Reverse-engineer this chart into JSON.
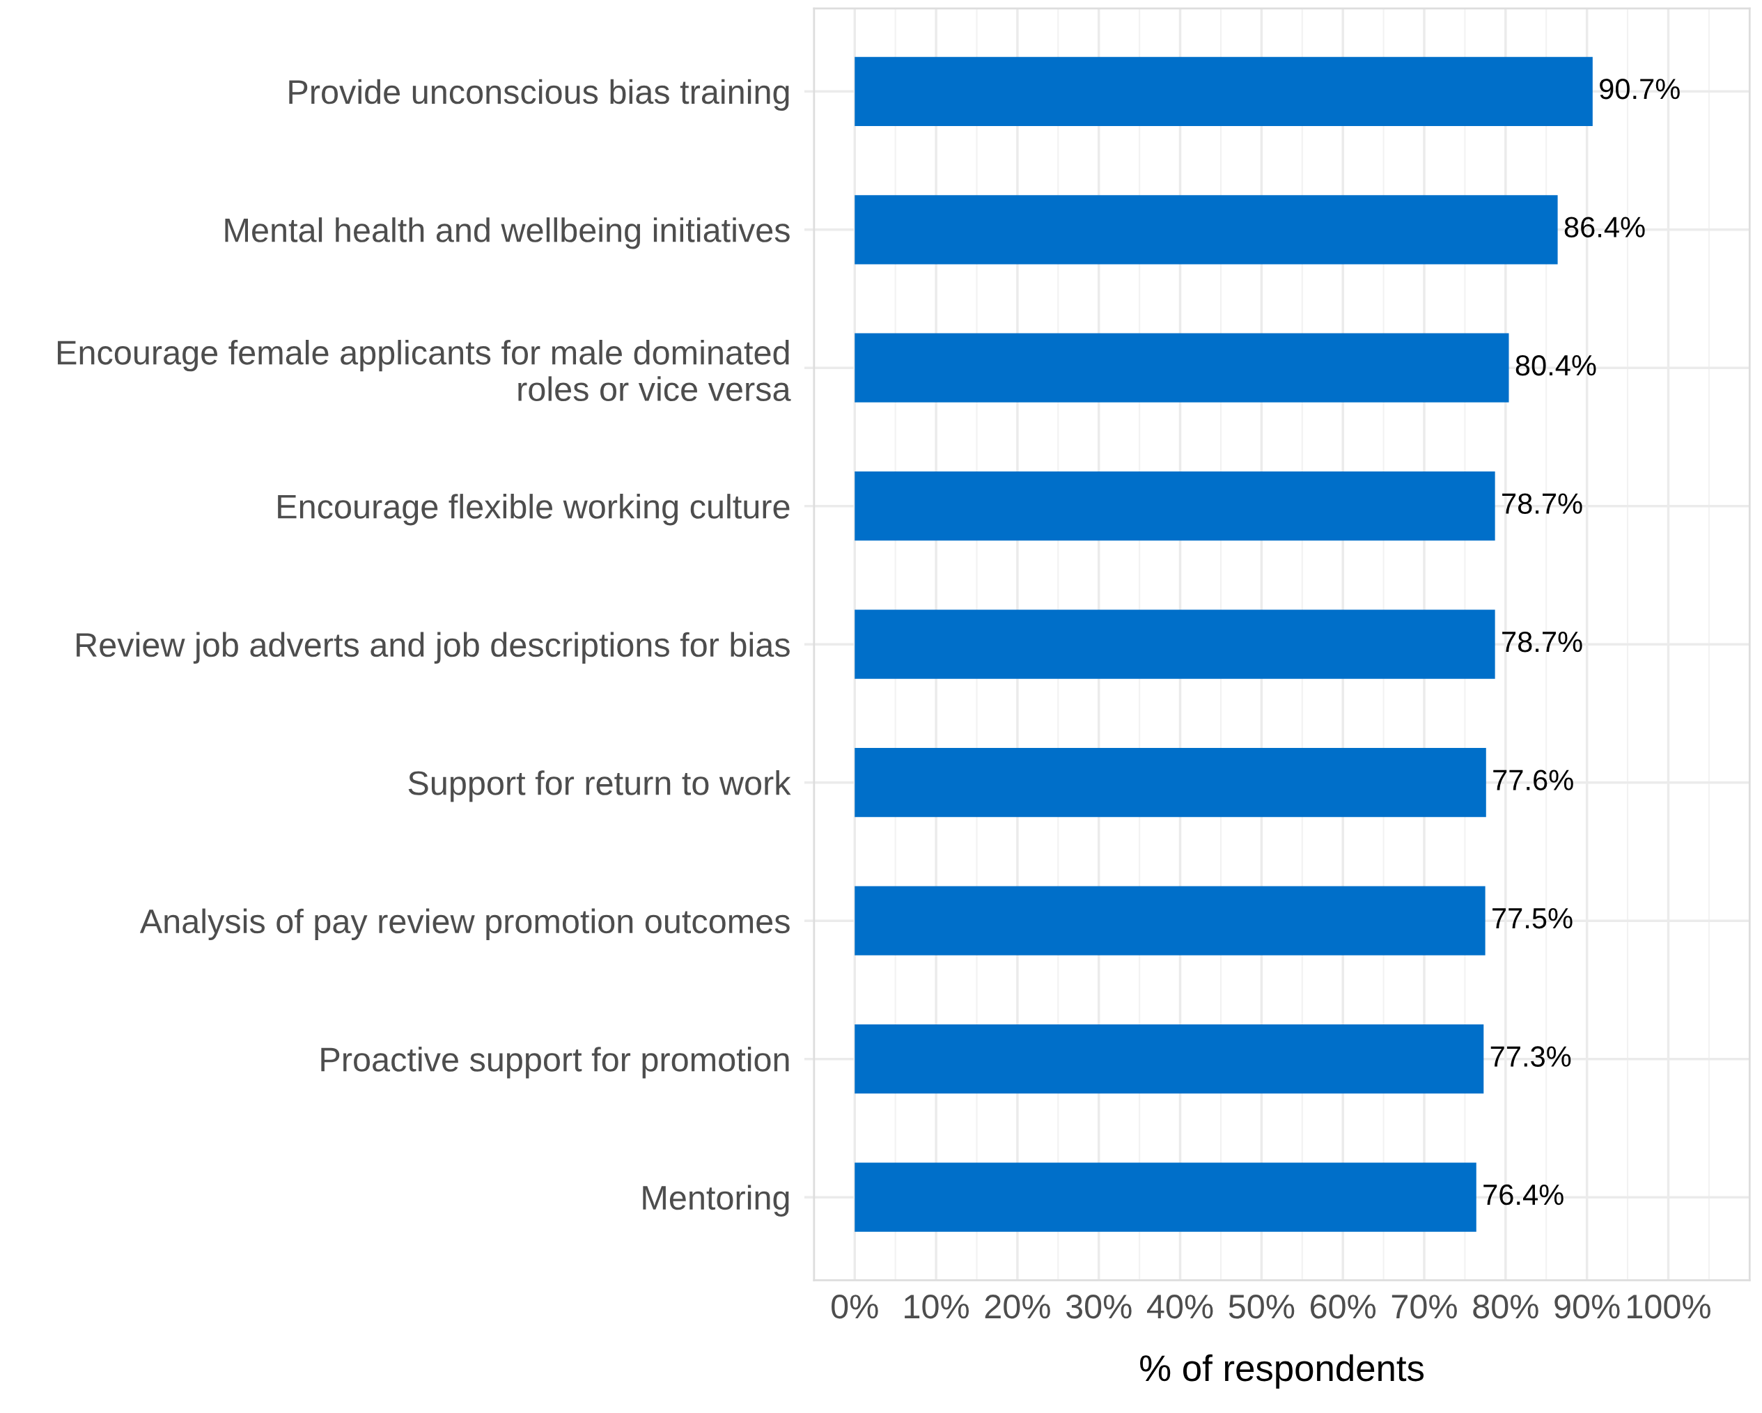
{
  "chart_data": {
    "type": "bar",
    "orientation": "horizontal",
    "xlabel": "% of respondents",
    "categories": [
      "Provide unconscious bias training",
      "Mental health and wellbeing initiatives",
      "Encourage female applicants for male dominated\nroles or vice versa",
      "Encourage flexible working culture",
      "Review job adverts and job descriptions for bias",
      "Support for return to work",
      "Analysis of pay review promotion outcomes",
      "Proactive support for promotion",
      "Mentoring"
    ],
    "values": [
      90.7,
      86.4,
      80.4,
      78.7,
      78.7,
      77.6,
      77.5,
      77.3,
      76.4
    ],
    "value_labels": [
      "90.7%",
      "86.4%",
      "80.4%",
      "78.7%",
      "78.7%",
      "77.6%",
      "77.5%",
      "77.3%",
      "76.4%"
    ],
    "color": "#006fc9",
    "xlim": [
      -5,
      110
    ],
    "xticks": [
      {
        "value": 0,
        "label": "0%"
      },
      {
        "value": 10,
        "label": "10%"
      },
      {
        "value": 20,
        "label": "20%"
      },
      {
        "value": 30,
        "label": "30%"
      },
      {
        "value": 40,
        "label": "40%"
      },
      {
        "value": 50,
        "label": "50%"
      },
      {
        "value": 60,
        "label": "60%"
      },
      {
        "value": 70,
        "label": "70%"
      },
      {
        "value": 80,
        "label": "80%"
      },
      {
        "value": 90,
        "label": "90%"
      },
      {
        "value": 100,
        "label": "100%"
      }
    ],
    "grid": true
  }
}
